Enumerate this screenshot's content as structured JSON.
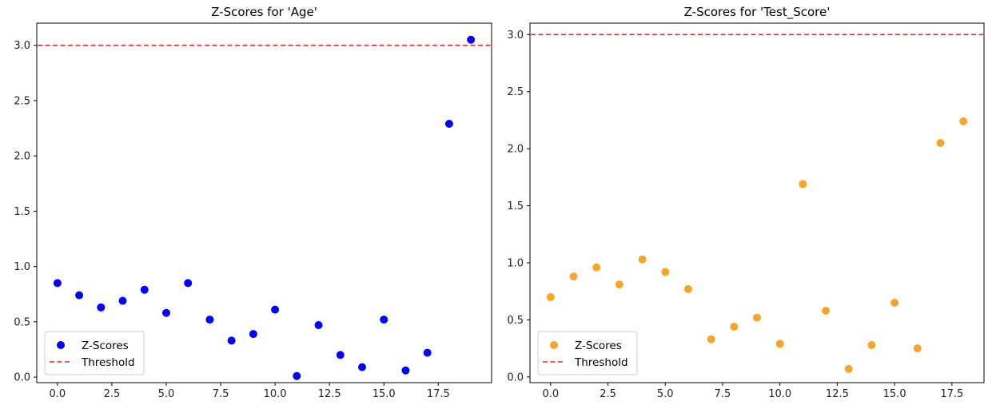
{
  "chart_data": [
    {
      "type": "scatter",
      "title": "Z-Scores for 'Age'",
      "xlabel": "",
      "ylabel": "",
      "xlim": [
        -0.95,
        19.95
      ],
      "ylim": [
        -0.05,
        3.2
      ],
      "xticks": [
        0.0,
        2.5,
        5.0,
        7.5,
        10.0,
        12.5,
        15.0,
        17.5
      ],
      "xtick_labels": [
        "0.0",
        "2.5",
        "5.0",
        "7.5",
        "10.0",
        "12.5",
        "15.0",
        "17.5"
      ],
      "yticks": [
        0.0,
        0.5,
        1.0,
        1.5,
        2.0,
        2.5,
        3.0
      ],
      "ytick_labels": [
        "0.0",
        "0.5",
        "1.0",
        "1.5",
        "2.0",
        "2.5",
        "3.0"
      ],
      "grid": false,
      "legend_position": "bottom-left",
      "series": [
        {
          "name": "Z-Scores",
          "color": "#0000ff",
          "x": [
            0,
            1,
            2,
            3,
            4,
            5,
            6,
            7,
            8,
            9,
            10,
            11,
            12,
            13,
            14,
            15,
            16,
            17,
            18,
            19
          ],
          "y": [
            0.85,
            0.74,
            0.63,
            0.69,
            0.79,
            0.58,
            0.85,
            0.52,
            0.33,
            0.39,
            0.61,
            0.01,
            0.47,
            0.2,
            0.09,
            0.52,
            0.06,
            0.22,
            2.29,
            3.05
          ]
        }
      ],
      "threshold": {
        "name": "Threshold",
        "value": 3.0,
        "color": "#e8262a",
        "style": "dashed"
      }
    },
    {
      "type": "scatter",
      "title": "Z-Scores for 'Test_Score'",
      "xlabel": "",
      "ylabel": "",
      "xlim": [
        -0.9,
        18.9
      ],
      "ylim": [
        -0.05,
        3.1
      ],
      "xticks": [
        0.0,
        2.5,
        5.0,
        7.5,
        10.0,
        12.5,
        15.0,
        17.5
      ],
      "xtick_labels": [
        "0.0",
        "2.5",
        "5.0",
        "7.5",
        "10.0",
        "12.5",
        "15.0",
        "17.5"
      ],
      "yticks": [
        0.0,
        0.5,
        1.0,
        1.5,
        2.0,
        2.5,
        3.0
      ],
      "ytick_labels": [
        "0.0",
        "0.5",
        "1.0",
        "1.5",
        "2.0",
        "2.5",
        "3.0"
      ],
      "grid": false,
      "legend_position": "bottom-left",
      "series": [
        {
          "name": "Z-Scores",
          "color": "#f5a52a",
          "x": [
            0,
            1,
            2,
            3,
            4,
            5,
            6,
            7,
            8,
            9,
            10,
            11,
            12,
            13,
            14,
            15,
            16,
            17,
            18
          ],
          "y": [
            0.7,
            0.88,
            0.96,
            0.81,
            1.03,
            0.92,
            0.77,
            0.33,
            0.44,
            0.52,
            0.29,
            1.69,
            0.58,
            0.07,
            0.28,
            0.65,
            0.25,
            2.05,
            2.24
          ]
        }
      ],
      "threshold": {
        "name": "Threshold",
        "value": 3.0,
        "color": "#e8262a",
        "style": "dashed"
      }
    }
  ]
}
